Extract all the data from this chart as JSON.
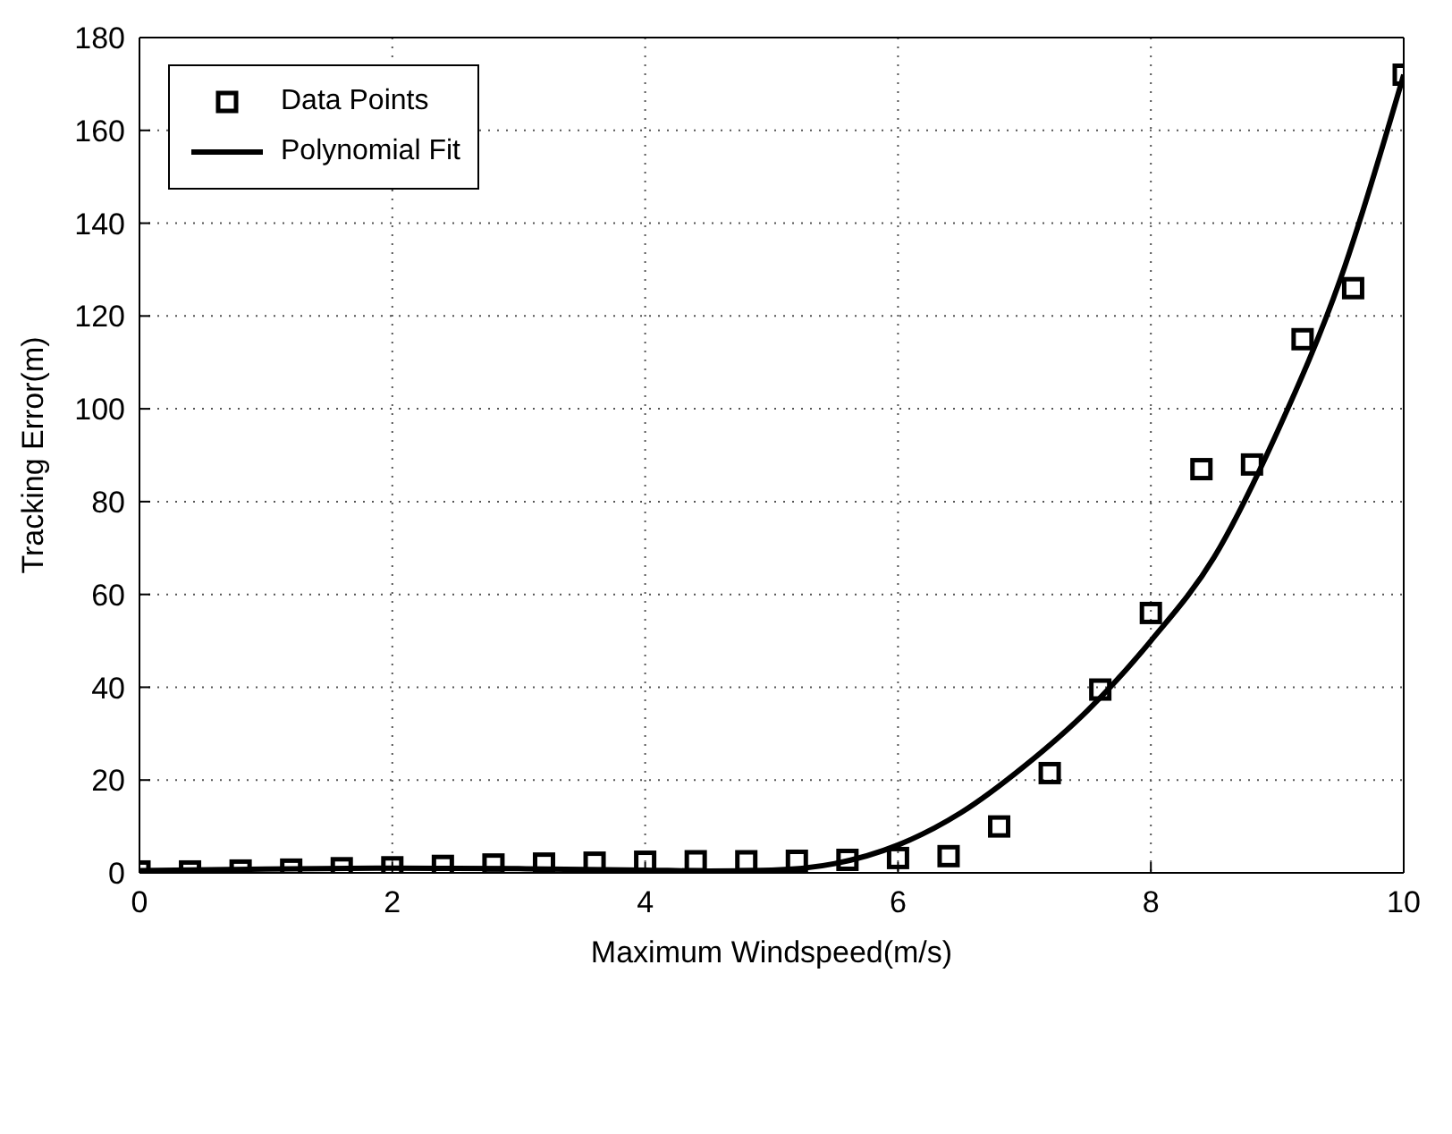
{
  "chart_data": {
    "type": "scatter",
    "xlabel": "Maximum Windspeed(m/s)",
    "ylabel": "Tracking Error(m)",
    "xlim": [
      0,
      10
    ],
    "xticks": [
      0,
      2,
      4,
      6,
      8,
      10
    ],
    "ylim": [
      0,
      180
    ],
    "yticks": [
      0,
      20,
      40,
      60,
      80,
      100,
      120,
      140,
      160,
      180
    ],
    "grid": true,
    "legend": "top left",
    "series": [
      {
        "name": "Data Points",
        "marker": "square",
        "color": "#000000",
        "x": [
          0,
          0.4,
          0.8,
          1.2,
          1.6,
          2.0,
          2.4,
          2.8,
          3.2,
          3.6,
          4.0,
          4.4,
          4.8,
          5.2,
          5.6,
          6.0,
          6.4,
          6.8,
          7.2,
          7.6,
          8.0,
          8.4,
          8.8,
          9.2,
          9.6,
          10
        ],
        "values": [
          0.3,
          0.3,
          0.5,
          0.7,
          1,
          1.2,
          1.5,
          1.8,
          2,
          2.2,
          2.4,
          2.5,
          2.5,
          2.6,
          2.8,
          3.2,
          3.6,
          10,
          21.5,
          39.5,
          56,
          87,
          88,
          115,
          126,
          172
        ]
      },
      {
        "name": "Polynomial Fit",
        "type": "line",
        "marker": "none",
        "line_style": "solid",
        "color": "#000000",
        "x": [
          0,
          1,
          2,
          3,
          4,
          4.5,
          5,
          5.5,
          6,
          6.5,
          7,
          7.5,
          8,
          8.5,
          9,
          9.5,
          10
        ],
        "values": [
          0.5,
          0.8,
          1,
          0.9,
          0.6,
          0.4,
          0.6,
          2,
          6,
          13,
          23,
          35,
          50,
          68,
          95,
          128,
          172
        ]
      }
    ]
  }
}
